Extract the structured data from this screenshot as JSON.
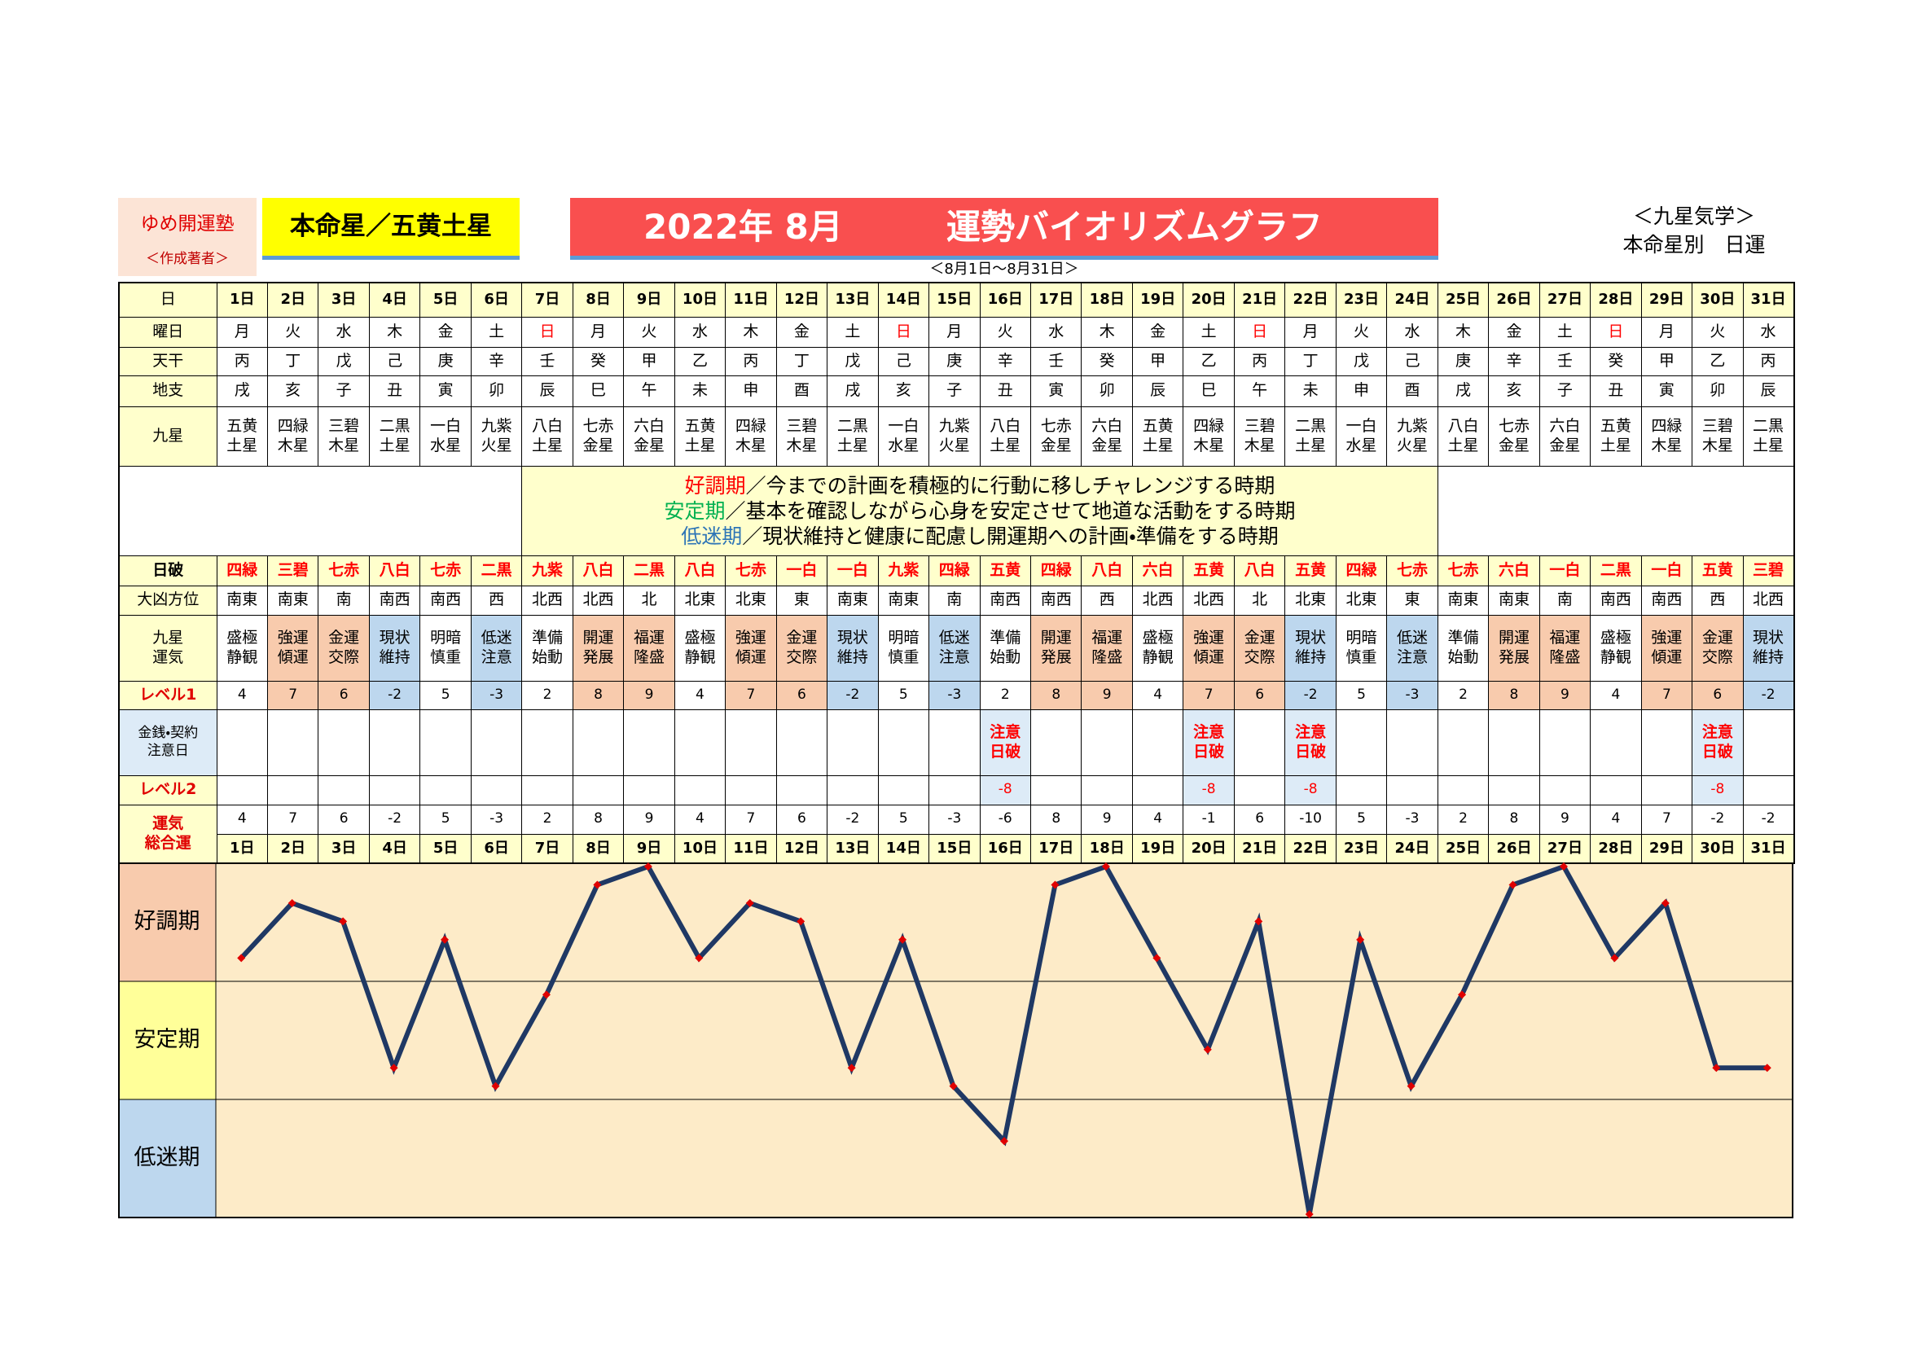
{
  "header": {
    "school": "ゆめ開運塾",
    "author": "＜作成著者＞",
    "star": "本命星／五黄土星",
    "title_date": "2022年 8月",
    "title": "運勢バイオリズムグラフ",
    "period": "＜8月1日～8月31日＞",
    "category": "＜九星気学＞",
    "subtitle": "本命星別　日運"
  },
  "legend": [
    {
      "term": "好調期",
      "text": "／今までの計画を積極的に行動に移しチャレンジする時期",
      "color": "#ff0000"
    },
    {
      "term": "安定期",
      "text": "／基本を確認しながら心身を安定させて地道な活動をする時期",
      "color": "#00b050"
    },
    {
      "term": "低迷期",
      "text": "／現状維持と健康に配慮し開運期への計画・準備をする時期",
      "color": "#2e75b6"
    }
  ],
  "table": {
    "labels": {
      "day": "日",
      "weekday": "曜日",
      "stem": "天干",
      "branch": "地支",
      "star": "九星",
      "breaker": "日破",
      "direction": "大凶方位",
      "fortune": "九星\n運気",
      "level1": "レベル1",
      "caution": "金銭・契約\n注意日",
      "level2": "レベル2",
      "total": "運気\n総合運"
    },
    "days": [
      "1日",
      "2日",
      "3日",
      "4日",
      "5日",
      "6日",
      "7日",
      "8日",
      "9日",
      "10日",
      "11日",
      "12日",
      "13日",
      "14日",
      "15日",
      "16日",
      "17日",
      "18日",
      "19日",
      "20日",
      "21日",
      "22日",
      "23日",
      "24日",
      "25日",
      "26日",
      "27日",
      "28日",
      "29日",
      "30日",
      "31日"
    ],
    "weekdays": [
      "月",
      "火",
      "水",
      "木",
      "金",
      "土",
      "日",
      "月",
      "火",
      "水",
      "木",
      "金",
      "土",
      "日",
      "月",
      "火",
      "水",
      "木",
      "金",
      "土",
      "日",
      "月",
      "火",
      "水",
      "木",
      "金",
      "土",
      "日",
      "月",
      "火",
      "水"
    ],
    "weekday_colors": [
      "#000000",
      "#000000",
      "#000000",
      "#000000",
      "#000000",
      "#000000",
      "#ff0000",
      "#000000",
      "#000000",
      "#000000",
      "#000000",
      "#000000",
      "#000000",
      "#ff0000",
      "#000000",
      "#000000",
      "#000000",
      "#000000",
      "#000000",
      "#000000",
      "#ff0000",
      "#000000",
      "#000000",
      "#000000",
      "#000000",
      "#000000",
      "#000000",
      "#ff0000",
      "#000000",
      "#000000",
      "#000000"
    ],
    "stems": [
      "丙",
      "丁",
      "戊",
      "己",
      "庚",
      "辛",
      "壬",
      "癸",
      "甲",
      "乙",
      "丙",
      "丁",
      "戊",
      "己",
      "庚",
      "辛",
      "壬",
      "癸",
      "甲",
      "乙",
      "丙",
      "丁",
      "戊",
      "己",
      "庚",
      "辛",
      "壬",
      "癸",
      "甲",
      "乙",
      "丙"
    ],
    "branches": [
      "戌",
      "亥",
      "子",
      "丑",
      "寅",
      "卯",
      "辰",
      "巳",
      "午",
      "未",
      "申",
      "酉",
      "戌",
      "亥",
      "子",
      "丑",
      "寅",
      "卯",
      "辰",
      "巳",
      "午",
      "未",
      "申",
      "酉",
      "戌",
      "亥",
      "子",
      "丑",
      "寅",
      "卯",
      "辰"
    ],
    "stars": [
      "五黄土星",
      "四緑木星",
      "三碧木星",
      "二黒土星",
      "一白水星",
      "九紫火星",
      "八白土星",
      "七赤金星",
      "六白金星",
      "五黄土星",
      "四緑木星",
      "三碧木星",
      "二黒土星",
      "一白水星",
      "九紫火星",
      "八白土星",
      "七赤金星",
      "六白金星",
      "五黄土星",
      "四緑木星",
      "三碧木星",
      "二黒土星",
      "一白水星",
      "九紫火星",
      "八白土星",
      "七赤金星",
      "六白金星",
      "五黄土星",
      "四緑木星",
      "三碧木星",
      "二黒土星"
    ],
    "breakers": [
      "四緑",
      "三碧",
      "七赤",
      "八白",
      "七赤",
      "二黒",
      "九紫",
      "八白",
      "二黒",
      "八白",
      "七赤",
      "一白",
      "一白",
      "九紫",
      "四緑",
      "五黄",
      "四緑",
      "八白",
      "六白",
      "五黄",
      "八白",
      "五黄",
      "四緑",
      "七赤",
      "七赤",
      "六白",
      "一白",
      "二黒",
      "一白",
      "五黄",
      "三碧"
    ],
    "directions": [
      "南東",
      "南東",
      "南",
      "南西",
      "南西",
      "西",
      "北西",
      "北西",
      "北",
      "北東",
      "北東",
      "東",
      "南東",
      "南東",
      "南",
      "南西",
      "南西",
      "西",
      "北西",
      "北西",
      "北",
      "北東",
      "北東",
      "東",
      "南東",
      "南東",
      "南",
      "南西",
      "南西",
      "西",
      "北西"
    ],
    "fortunes": [
      "盛極静観",
      "強運傾運",
      "金運交際",
      "現状維持",
      "明暗慎重",
      "低迷注意",
      "準備始動",
      "開運発展",
      "福運隆盛",
      "盛極静観",
      "強運傾運",
      "金運交際",
      "現状維持",
      "明暗慎重",
      "低迷注意",
      "準備始動",
      "開運発展",
      "福運隆盛",
      "盛極静観",
      "強運傾運",
      "金運交際",
      "現状維持",
      "明暗慎重",
      "低迷注意",
      "準備始動",
      "開運発展",
      "福運隆盛",
      "盛極静観",
      "強運傾運",
      "金運交際",
      "現状維持"
    ],
    "fortune_colors": [
      "#ffffff",
      "#f8cbad",
      "#f8cbad",
      "#bdd7ee",
      "#ffffff",
      "#bdd7ee",
      "#ffffff",
      "#f8cbad",
      "#f8cbad",
      "#ffffff",
      "#f8cbad",
      "#f8cbad",
      "#bdd7ee",
      "#ffffff",
      "#bdd7ee",
      "#ffffff",
      "#f8cbad",
      "#f8cbad",
      "#ffffff",
      "#f8cbad",
      "#f8cbad",
      "#bdd7ee",
      "#ffffff",
      "#bdd7ee",
      "#ffffff",
      "#f8cbad",
      "#f8cbad",
      "#ffffff",
      "#f8cbad",
      "#f8cbad",
      "#bdd7ee"
    ],
    "level1": [
      4,
      7,
      6,
      -2,
      5,
      -3,
      2,
      8,
      9,
      4,
      7,
      6,
      -2,
      5,
      -3,
      2,
      8,
      9,
      4,
      7,
      6,
      -2,
      5,
      -3,
      2,
      8,
      9,
      4,
      7,
      6,
      -2
    ],
    "caution": [
      null,
      null,
      null,
      null,
      null,
      null,
      null,
      null,
      null,
      null,
      null,
      null,
      null,
      null,
      null,
      "注意日破",
      null,
      null,
      null,
      "注意日破",
      null,
      "注意日破",
      null,
      null,
      null,
      null,
      null,
      null,
      null,
      "注意日破",
      null
    ],
    "level2": [
      null,
      null,
      null,
      null,
      null,
      null,
      null,
      null,
      null,
      null,
      null,
      null,
      null,
      null,
      null,
      -8,
      null,
      null,
      null,
      -8,
      null,
      -8,
      null,
      null,
      null,
      null,
      null,
      null,
      null,
      -8,
      null
    ]
  },
  "chart_data": {
    "type": "line",
    "categories": [
      "1日",
      "2日",
      "3日",
      "4日",
      "5日",
      "6日",
      "7日",
      "8日",
      "9日",
      "10日",
      "11日",
      "12日",
      "13日",
      "14日",
      "15日",
      "16日",
      "17日",
      "18日",
      "19日",
      "20日",
      "21日",
      "22日",
      "23日",
      "24日",
      "25日",
      "26日",
      "27日",
      "28日",
      "29日",
      "30日",
      "31日"
    ],
    "values": [
      4,
      7,
      6,
      -2,
      5,
      -3,
      2,
      8,
      9,
      4,
      7,
      6,
      -2,
      5,
      -3,
      -6,
      8,
      9,
      4,
      -1,
      6,
      -10,
      5,
      -3,
      2,
      8,
      9,
      4,
      7,
      -2,
      -2
    ],
    "ylim": [
      -10,
      9
    ],
    "color": "#1f3864",
    "marker_color": "#e00000",
    "background": "#fdebc8",
    "bands": [
      "好調期",
      "安定期",
      "低迷期"
    ],
    "band_colors": [
      "#f8cbad",
      "#ffff99",
      "#bdd7ee"
    ]
  }
}
